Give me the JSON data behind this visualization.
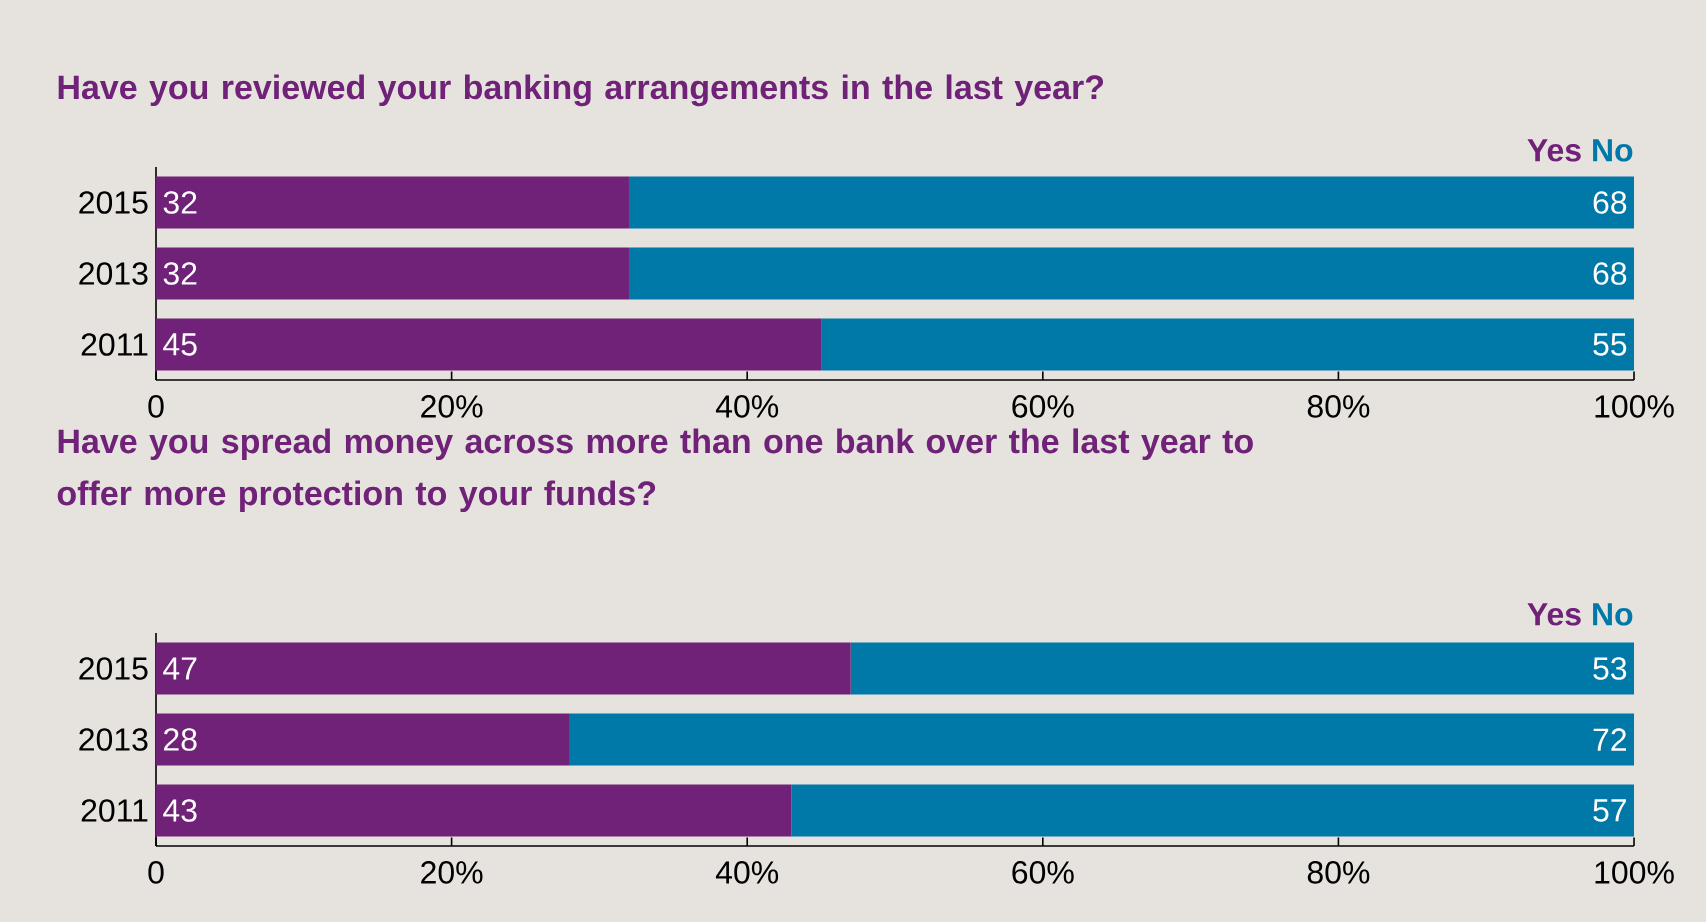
{
  "chart_data": [
    {
      "type": "bar",
      "orientation": "horizontal",
      "stacked": true,
      "title": "Have you reviewed your banking arrangements in the last year?",
      "categories": [
        "2015",
        "2013",
        "2011"
      ],
      "series": [
        {
          "name": "Yes",
          "color": "#6f2277",
          "values": [
            32,
            32,
            45
          ]
        },
        {
          "name": "No",
          "color": "#0079a8",
          "values": [
            68,
            68,
            55
          ]
        }
      ],
      "xlim": [
        0,
        100
      ],
      "xticks": [
        0,
        {
          "value": 20,
          "label": "20%"
        },
        {
          "value": 40,
          "label": "40%"
        },
        {
          "value": 60,
          "label": "60%"
        },
        {
          "value": 80,
          "label": "80%"
        },
        {
          "value": 100,
          "label": "100%"
        }
      ],
      "data_labels": true,
      "legend": "top right"
    },
    {
      "type": "bar",
      "orientation": "horizontal",
      "stacked": true,
      "title": "Have you spread money across more than one bank over the last year to offer more protection to your funds?",
      "categories": [
        "2015",
        "2013",
        "2011"
      ],
      "series": [
        {
          "name": "Yes",
          "color": "#6f2277",
          "values": [
            47,
            28,
            43
          ]
        },
        {
          "name": "No",
          "color": "#0079a8",
          "values": [
            53,
            72,
            57
          ]
        }
      ],
      "xlim": [
        0,
        100
      ],
      "xticks": [
        0,
        {
          "value": 20,
          "label": "20%"
        },
        {
          "value": 40,
          "label": "40%"
        },
        {
          "value": 60,
          "label": "60%"
        },
        {
          "value": 80,
          "label": "80%"
        },
        {
          "value": 100,
          "label": "100%"
        }
      ],
      "data_labels": true,
      "legend": "top right"
    }
  ]
}
